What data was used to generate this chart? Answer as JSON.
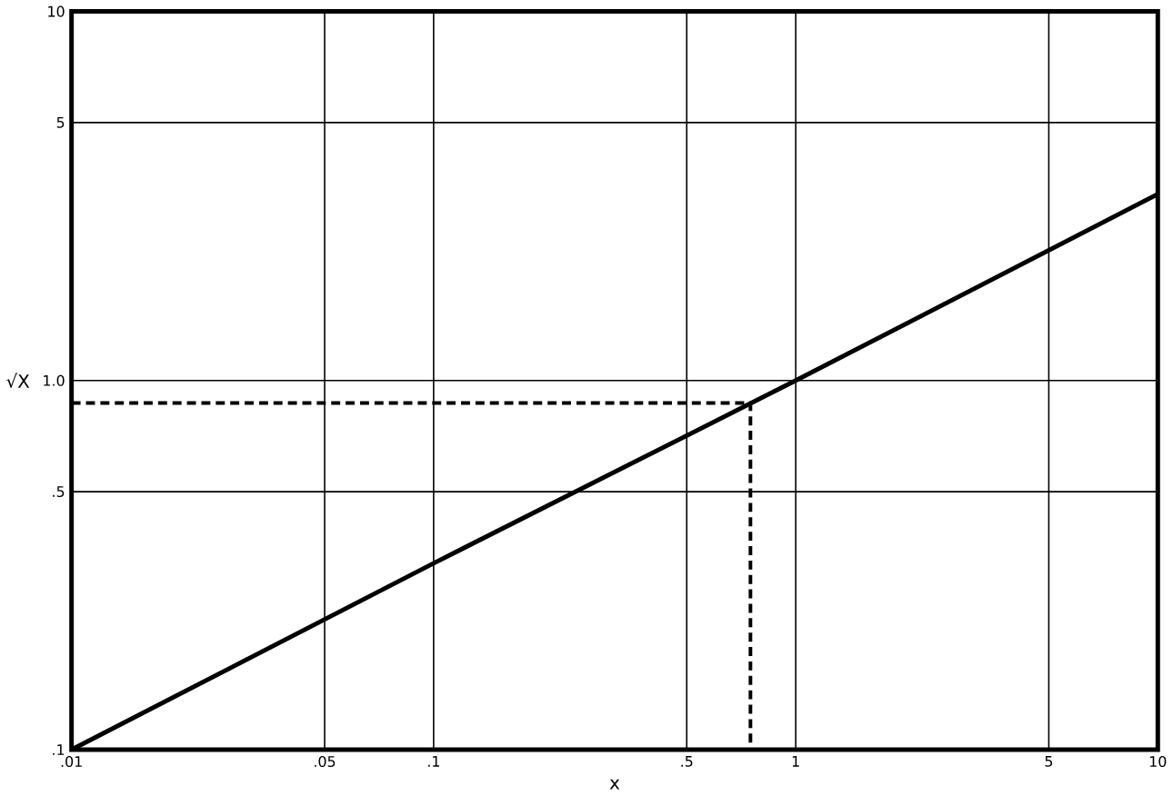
{
  "chart_data": {
    "type": "line",
    "xlabel": "x",
    "ylabel": "√X",
    "log": "xy",
    "grid": true,
    "xlim": [
      0.01,
      10
    ],
    "ylim": [
      0.1,
      10
    ],
    "xticks": [
      {
        "value": 0.01,
        "label": ".01"
      },
      {
        "value": 0.05,
        "label": ".05"
      },
      {
        "value": 0.1,
        "label": ".1"
      },
      {
        "value": 0.5,
        "label": ".5"
      },
      1,
      5,
      10
    ],
    "yticks": [
      {
        "value": 0.1,
        "label": ".1"
      },
      {
        "value": 0.5,
        "label": ".5"
      },
      {
        "value": 1,
        "label": "1.0"
      },
      5,
      10
    ],
    "series": [
      {
        "color": "#000000",
        "x": [
          0.01,
          0.1,
          1,
          10
        ],
        "values": [
          0.1,
          0.32,
          1,
          3.2
        ],
        "line_style": "solid"
      },
      {
        "color": "#000000",
        "x": [
          0.01,
          0.75,
          0.75
        ],
        "values": [
          0.87,
          0.87,
          0.1
        ],
        "line_style": "dashed"
      }
    ]
  }
}
